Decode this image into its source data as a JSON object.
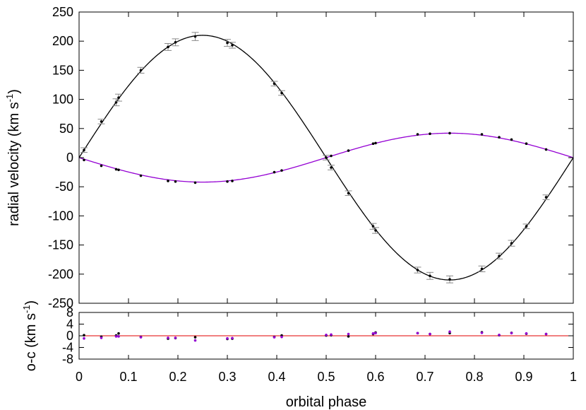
{
  "chart_data": [
    {
      "type": "scatter",
      "panel": "main",
      "xlabel": "orbital phase",
      "ylabel_main": "radial velocity (km s",
      "ylabel_unit_sup": "-1",
      "ylabel_close": ")",
      "xlim": [
        0,
        1
      ],
      "ylim": [
        -250,
        250
      ],
      "xticks": [
        "0",
        "0.1",
        "0.2",
        "0.3",
        "0.4",
        "0.5",
        "0.6",
        "0.7",
        "0.8",
        "0.9",
        "1"
      ],
      "yticks": [
        "250",
        "200",
        "150",
        "100",
        "50",
        "0",
        "-50",
        "-100",
        "-150",
        "-200",
        "-250"
      ],
      "series": [
        {
          "color": "#000000",
          "curve_amplitude": 210,
          "x": [
            0.01,
            0.045,
            0.075,
            0.08,
            0.125,
            0.18,
            0.195,
            0.235,
            0.3,
            0.31,
            0.395,
            0.41,
            0.5,
            0.51,
            0.545,
            0.595,
            0.6,
            0.685,
            0.71,
            0.75,
            0.815,
            0.85,
            0.875,
            0.905,
            0.945
          ],
          "y": [
            13,
            62,
            95,
            103,
            150,
            190,
            198,
            208,
            197,
            193,
            127,
            111,
            0,
            -17,
            -61,
            -118,
            -125,
            -193,
            -203,
            -209,
            -191,
            -169,
            -147,
            -118,
            -68
          ],
          "err": [
            4,
            4,
            6,
            6,
            5,
            6,
            6,
            7,
            6,
            5,
            4,
            4,
            4,
            4,
            4,
            5,
            5,
            5,
            6,
            6,
            5,
            5,
            5,
            4,
            4
          ]
        },
        {
          "color": "#9400d3",
          "curve_amplitude": 42,
          "x": [
            0.01,
            0.045,
            0.075,
            0.08,
            0.125,
            0.18,
            0.195,
            0.235,
            0.3,
            0.31,
            0.395,
            0.41,
            0.5,
            0.51,
            0.545,
            0.595,
            0.6,
            0.685,
            0.71,
            0.75,
            0.815,
            0.85,
            0.875,
            0.905,
            0.945
          ],
          "y": [
            -4,
            -14,
            -20,
            -21,
            -31,
            -40,
            -41,
            -43,
            -41,
            -40,
            -25,
            -22,
            0,
            3,
            12,
            24,
            25,
            40,
            41,
            42,
            40,
            35,
            31,
            24,
            14
          ]
        }
      ]
    },
    {
      "type": "scatter",
      "panel": "residuals",
      "ylabel_main": "o-c (km s",
      "ylabel_unit_sup": "-1",
      "ylabel_close": ")",
      "xlim": [
        0,
        1
      ],
      "ylim": [
        -8,
        8
      ],
      "yticks": [
        "8",
        "4",
        "0",
        "-4",
        "-8"
      ],
      "zero_line_color": "#e00000",
      "series": [
        {
          "color": "#000000",
          "x": [
            0.01,
            0.045,
            0.075,
            0.08,
            0.125,
            0.18,
            0.195,
            0.235,
            0.3,
            0.31,
            0.395,
            0.41,
            0.5,
            0.51,
            0.545,
            0.595,
            0.6,
            0.685,
            0.71,
            0.75,
            0.815,
            0.85,
            0.875,
            0.905,
            0.945
          ],
          "y": [
            0.2,
            -0.3,
            0.1,
            0.8,
            -0.4,
            -1.0,
            -0.8,
            -0.5,
            -1.1,
            -1.0,
            -0.4,
            0.1,
            0.1,
            0.2,
            -0.2,
            0.6,
            1.1,
            0.9,
            0.6,
            0.9,
            1.2,
            0.2,
            1.0,
            0.7,
            0.6
          ]
        },
        {
          "color": "#9400d3",
          "x": [
            0.01,
            0.045,
            0.075,
            0.08,
            0.125,
            0.18,
            0.195,
            0.235,
            0.3,
            0.31,
            0.395,
            0.41,
            0.5,
            0.51,
            0.545,
            0.595,
            0.6,
            0.685,
            0.71,
            0.75,
            0.815,
            0.85,
            0.875,
            0.905,
            0.945
          ],
          "y": [
            -0.9,
            -0.7,
            -0.2,
            -0.2,
            -0.5,
            -0.7,
            -0.7,
            -1.6,
            -0.9,
            -0.8,
            -0.5,
            -0.4,
            0.3,
            0.4,
            0.6,
            0.8,
            0.9,
            0.9,
            0.6,
            1.4,
            1.0,
            0.3,
            0.9,
            0.8,
            0.6
          ]
        }
      ]
    }
  ]
}
